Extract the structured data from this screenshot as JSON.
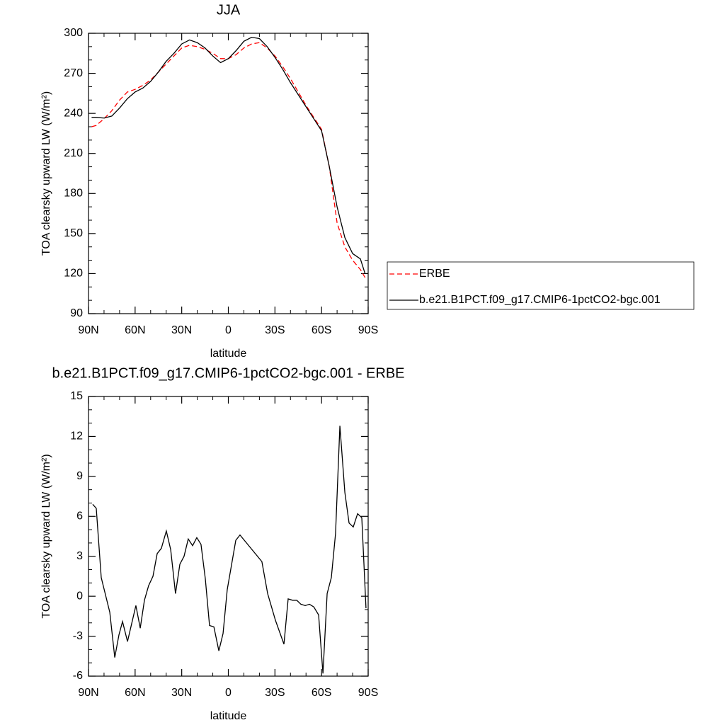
{
  "chart_data": [
    {
      "type": "line",
      "title": "JJA",
      "xlabel": "latitude",
      "ylabel": "TOA clearsky upward LW (W/m²)",
      "x": [
        88,
        85,
        80,
        75,
        70,
        65,
        60,
        55,
        50,
        45,
        40,
        35,
        30,
        25,
        20,
        15,
        10,
        5,
        0,
        -5,
        -10,
        -15,
        -20,
        -25,
        -30,
        -35,
        -40,
        -45,
        -50,
        -55,
        -60,
        -65,
        -70,
        -75,
        -80,
        -85,
        -88
      ],
      "series": [
        {
          "name": "ERBE",
          "color": "#ff0000",
          "style": "dashed",
          "values": [
            230,
            231,
            236,
            242,
            250,
            256,
            258,
            261,
            265,
            271,
            277,
            283,
            289,
            291,
            290,
            288,
            285,
            281,
            281,
            284,
            289,
            292,
            293,
            289,
            283,
            275,
            266,
            256,
            246,
            237,
            228,
            200,
            158,
            140,
            130,
            123,
            117
          ]
        },
        {
          "name": "b.e21.B1PCT.f09_g17.CMIP6-1pctCO2-bgc.001",
          "color": "#000000",
          "style": "solid",
          "values": [
            237,
            237,
            236.5,
            238,
            244,
            251,
            256,
            259,
            264,
            271,
            279,
            285,
            292,
            295,
            293,
            289,
            283,
            278,
            281,
            287,
            294,
            297,
            296,
            290,
            282,
            273,
            263,
            254,
            245,
            236,
            227,
            200,
            170,
            147,
            135,
            131,
            120
          ]
        }
      ],
      "xlim": [
        90,
        -90
      ],
      "xticks": [
        {
          "value": 90,
          "label": "90N"
        },
        {
          "value": 60,
          "label": "60N"
        },
        {
          "value": 30,
          "label": "30N"
        },
        0,
        {
          "value": -30,
          "label": "30S"
        },
        {
          "value": -60,
          "label": "60S"
        },
        {
          "value": -90,
          "label": "90S"
        }
      ],
      "ylim": [
        90,
        300
      ],
      "yticks": [
        90,
        120,
        150,
        180,
        210,
        240,
        270,
        300
      ],
      "legend": "right"
    },
    {
      "type": "line",
      "title": "b.e21.B1PCT.f09_g17.CMIP6-1pctCO2-bgc.001 - ERBE",
      "xlabel": "latitude",
      "ylabel": "TOA clearsky upward LW (W/m²)",
      "x": [
        87.3,
        85.0,
        81.8,
        76.3,
        73.1,
        70.4,
        68.1,
        64.9,
        59.5,
        56.7,
        54.0,
        51.3,
        48.5,
        45.8,
        43.1,
        39.9,
        37.1,
        34.0,
        31.2,
        28.5,
        25.8,
        23.0,
        20.3,
        17.6,
        14.8,
        12.1,
        9.3,
        6.1,
        3.4,
        0.7,
        -4.8,
        -7.5,
        -10.3,
        -21.6,
        -25.3,
        -30.3,
        -35.8,
        -38.5,
        -41.3,
        -44.0,
        -46.7,
        -49.5,
        -52.2,
        -55.0,
        -58.1,
        -60.9,
        -63.6,
        -66.3,
        -69.0,
        -71.8,
        -75.0,
        -77.7,
        -80.4,
        -83.2,
        -85.9,
        -88.6
      ],
      "series": [
        {
          "color": "#000000",
          "style": "solid",
          "values": [
            6.9,
            6.6,
            1.4,
            -1.2,
            -4.6,
            -2.9,
            -1.9,
            -3.4,
            -0.7,
            -2.4,
            -0.3,
            0.8,
            1.5,
            3.2,
            3.6,
            4.9,
            3.5,
            0.2,
            2.4,
            3.0,
            4.3,
            3.8,
            4.4,
            3.9,
            1.3,
            -2.2,
            -2.3,
            -4.1,
            -2.8,
            0.5,
            4.2,
            4.6,
            4.2,
            2.6,
            0.2,
            -1.8,
            -3.6,
            -0.2,
            -0.3,
            -0.3,
            -0.6,
            -0.7,
            -0.6,
            -0.8,
            -1.4,
            -5.8,
            0.2,
            1.4,
            4.7,
            12.8,
            7.8,
            5.5,
            5.2,
            6.2,
            5.9,
            -0.9
          ]
        }
      ],
      "xlim": [
        90,
        -90
      ],
      "xticks": [
        {
          "value": 90,
          "label": "90N"
        },
        {
          "value": 60,
          "label": "60N"
        },
        {
          "value": 30,
          "label": "30N"
        },
        0,
        {
          "value": -30,
          "label": "30S"
        },
        {
          "value": -60,
          "label": "60S"
        },
        {
          "value": -90,
          "label": "90S"
        }
      ],
      "ylim": [
        -6,
        15
      ],
      "yticks": [
        -6,
        -3,
        0,
        3,
        6,
        9,
        12,
        15
      ]
    }
  ]
}
